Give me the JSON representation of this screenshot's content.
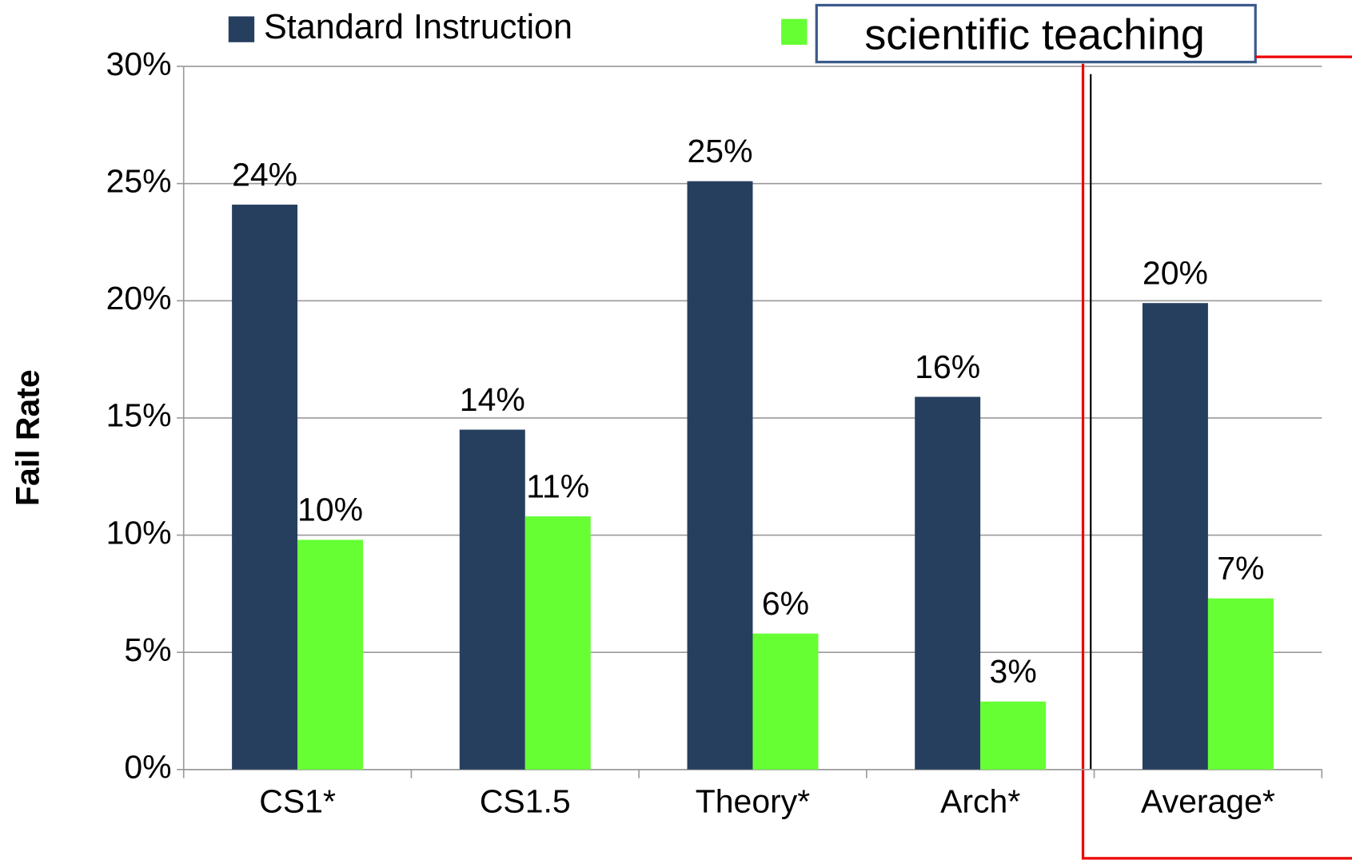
{
  "chart_data": {
    "type": "bar",
    "y_label": "Fail Rate",
    "categories": [
      "CS1*",
      "CS1.5",
      "Theory*",
      "Arch*",
      "Average*"
    ],
    "series": [
      {
        "name": "Standard Instruction",
        "color": "#263f5f",
        "values": [
          24.1,
          14.5,
          25.1,
          15.9,
          19.9
        ],
        "value_labels": [
          "24%",
          "14%",
          "25%",
          "16%",
          "20%"
        ]
      },
      {
        "name": "scientific teaching",
        "color": "#66ff33",
        "values": [
          9.8,
          10.8,
          5.8,
          2.9,
          7.3
        ],
        "value_labels": [
          "10%",
          "11%",
          "6%",
          "3%",
          "7%"
        ]
      }
    ],
    "ylim": [
      0,
      30
    ],
    "yticks": [
      {
        "value": 0,
        "label": "0%"
      },
      {
        "value": 5,
        "label": "5%"
      },
      {
        "value": 10,
        "label": "10%"
      },
      {
        "value": 15,
        "label": "15%"
      },
      {
        "value": 20,
        "label": "20%"
      },
      {
        "value": 25,
        "label": "25%"
      },
      {
        "value": 30,
        "label": "30%"
      }
    ],
    "grid": true
  }
}
